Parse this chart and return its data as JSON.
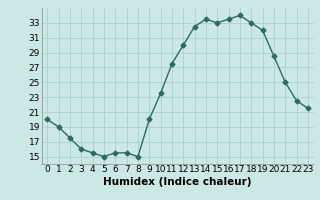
{
  "x": [
    0,
    1,
    2,
    3,
    4,
    5,
    6,
    7,
    8,
    9,
    10,
    11,
    12,
    13,
    14,
    15,
    16,
    17,
    18,
    19,
    20,
    21,
    22,
    23
  ],
  "y": [
    20,
    19,
    17.5,
    16,
    15.5,
    15,
    15.5,
    15.5,
    15,
    20,
    23.5,
    27.5,
    30,
    32.5,
    33.5,
    33,
    33.5,
    34,
    33,
    32,
    28.5,
    25,
    22.5,
    21.5
  ],
  "line_color": "#2d6b5e",
  "marker": "D",
  "marker_size": 2.5,
  "bg_color": "#cce8e4",
  "grid_color": "#b0d4cf",
  "xlabel": "Humidex (Indice chaleur)",
  "xlim": [
    -0.5,
    23.5
  ],
  "ylim": [
    14,
    35
  ],
  "yticks": [
    15,
    17,
    19,
    21,
    23,
    25,
    27,
    29,
    31,
    33
  ],
  "xticks": [
    0,
    1,
    2,
    3,
    4,
    5,
    6,
    7,
    8,
    9,
    10,
    11,
    12,
    13,
    14,
    15,
    16,
    17,
    18,
    19,
    20,
    21,
    22,
    23
  ],
  "xlabel_fontsize": 7.5,
  "tick_fontsize": 6.5,
  "line_width": 1.0
}
